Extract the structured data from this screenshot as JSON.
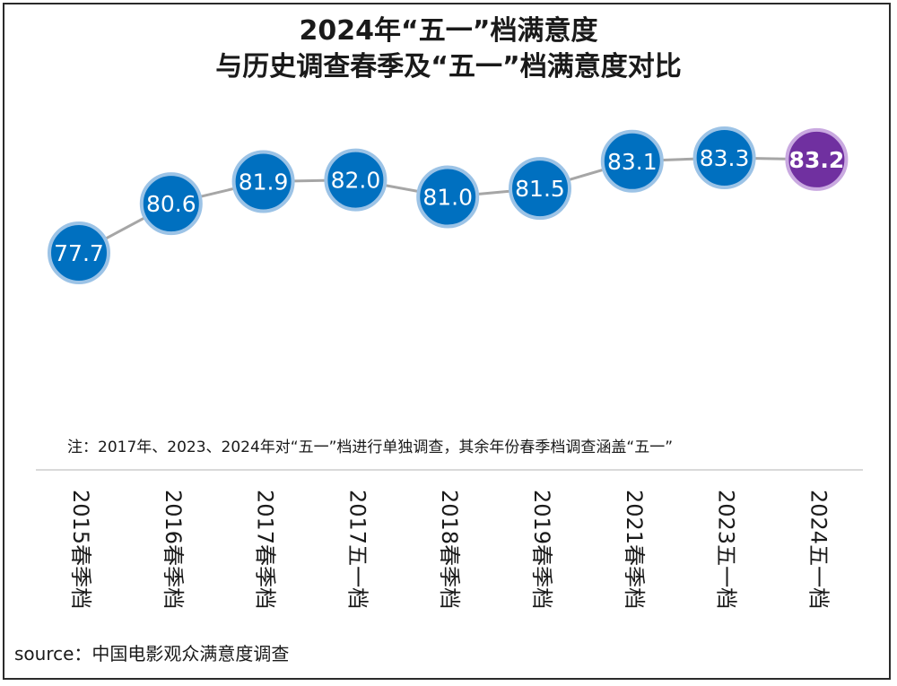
{
  "title_line1": "2024年“五一”档满意度",
  "title_line2": "与历史调查春季及“五一”档满意度对比",
  "note": "注：2017年、2023、2024年对“五一”档进行单独调查，其余年份春季档调查涵盖“五一”",
  "source": "source：中国电影观众满意度调查",
  "colors": {
    "historical": "#0070c0",
    "historical_ring": "#9cc3e6",
    "current": "#7030a0",
    "current_ring": "#c9a9e0",
    "line": "#a6a6a6"
  },
  "chart_data": {
    "type": "line",
    "categories": [
      "2015春季档",
      "2016春季档",
      "2017春季档",
      "2017五一档",
      "2018春季档",
      "2019春季档",
      "2021春季档",
      "2023五一档",
      "2024五一档"
    ],
    "values": [
      77.7,
      80.6,
      81.9,
      82.0,
      81.0,
      81.5,
      83.1,
      83.3,
      83.2
    ],
    "data_labels": [
      "77.7",
      "80.6",
      "81.9",
      "82.0",
      "81.0",
      "81.5",
      "83.1",
      "83.3",
      "83.2"
    ],
    "highlight_index": 8,
    "grid": false,
    "legend": "none"
  }
}
